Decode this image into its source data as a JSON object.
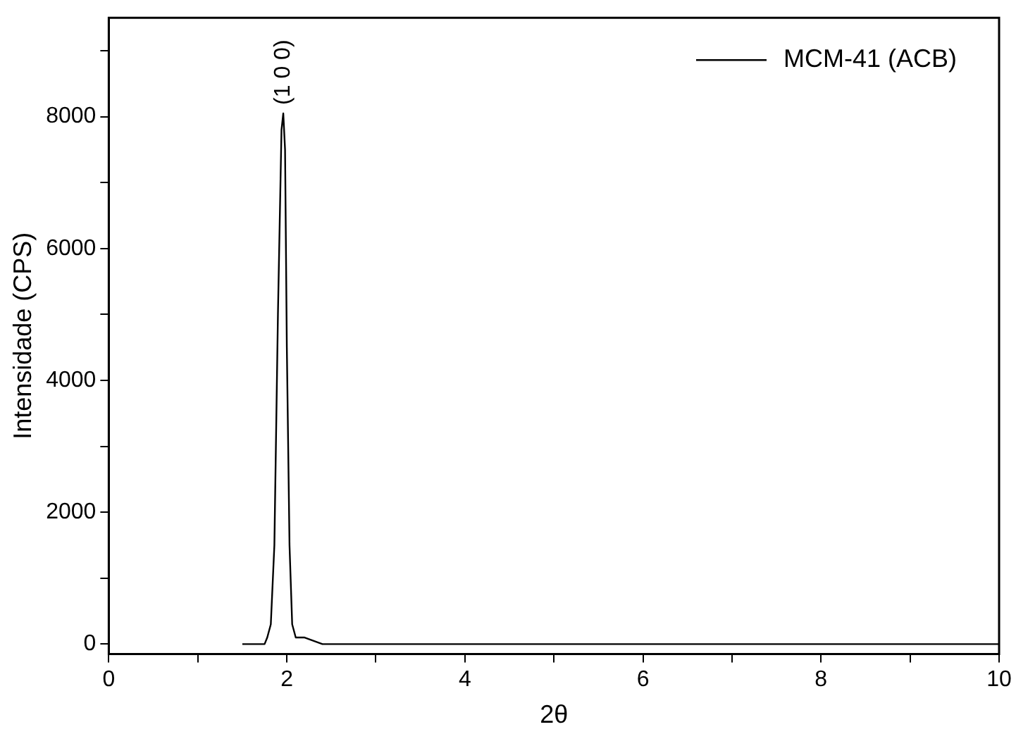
{
  "chart_data": {
    "type": "line",
    "xlabel": "2θ",
    "ylabel": "Intensidade (CPS)",
    "x": [
      1.5,
      1.6,
      1.7,
      1.75,
      1.78,
      1.82,
      1.86,
      1.9,
      1.94,
      1.96,
      1.98,
      2.0,
      2.03,
      2.06,
      2.1,
      2.2,
      2.4,
      2.6,
      2.8,
      3.0,
      4.0,
      6.0,
      8.0,
      10.0
    ],
    "series": [
      {
        "name": "MCM-41 (ACB)",
        "color": "#000000",
        "values": [
          0,
          0,
          0,
          0,
          100,
          300,
          1500,
          5000,
          7800,
          8050,
          7500,
          4500,
          1500,
          300,
          100,
          100,
          0,
          0,
          0,
          0,
          0,
          0,
          0,
          0
        ]
      }
    ],
    "xlim": [
      0,
      10
    ],
    "ylim": [
      -150,
      9500
    ],
    "xticks": [
      0,
      {
        "value": 1,
        "label": null
      },
      2,
      {
        "value": 3,
        "label": null
      },
      4,
      {
        "value": 5,
        "label": null
      },
      6,
      {
        "value": 7,
        "label": null
      },
      8,
      {
        "value": 9,
        "label": null
      },
      10
    ],
    "yticks": [
      0,
      {
        "value": 1000,
        "label": null
      },
      2000,
      {
        "value": 3000,
        "label": null
      },
      4000,
      {
        "value": 5000,
        "label": null
      },
      6000,
      {
        "value": 7000,
        "label": null
      },
      8000,
      {
        "value": 9000,
        "label": null
      }
    ],
    "annotations": [
      {
        "text": "(1 0 0)",
        "x": 1.96,
        "y": 8050
      }
    ],
    "legend": "top right",
    "grid": false,
    "marker": "none",
    "line_style": "solid"
  }
}
